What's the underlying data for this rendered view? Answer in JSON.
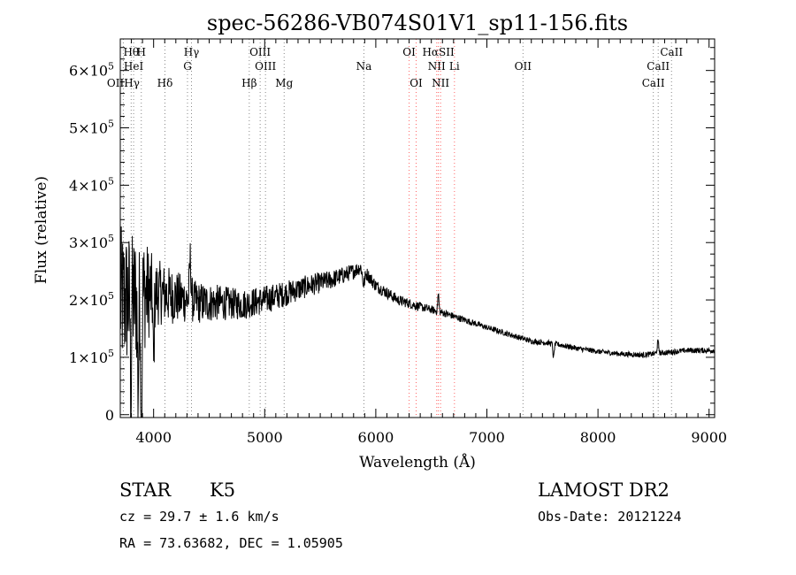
{
  "chart_data": {
    "type": "line",
    "title": "spec-56286-VB074S01V1_sp11-156.fits",
    "xlabel": "Wavelength (Å)",
    "ylabel": "Flux (relative)",
    "xlim": [
      3700,
      9050
    ],
    "ylim": [
      -5000,
      655000
    ],
    "x_ticks": [
      4000,
      5000,
      6000,
      7000,
      8000,
      9000
    ],
    "y_ticks": [
      {
        "value": 0,
        "mant": "0",
        "exp": ""
      },
      {
        "value": 100000,
        "mant": "1×10",
        "exp": "5"
      },
      {
        "value": 200000,
        "mant": "2×10",
        "exp": "5"
      },
      {
        "value": 300000,
        "mant": "3×10",
        "exp": "5"
      },
      {
        "value": 400000,
        "mant": "4×10",
        "exp": "5"
      },
      {
        "value": 500000,
        "mant": "5×10",
        "exp": "5"
      },
      {
        "value": 600000,
        "mant": "6×10",
        "exp": "5"
      }
    ],
    "series": [
      {
        "name": "flux",
        "continuum": [
          [
            3700,
            200000
          ],
          [
            3800,
            200000
          ],
          [
            3900,
            210000
          ],
          [
            4000,
            215000
          ],
          [
            4200,
            205000
          ],
          [
            4400,
            195000
          ],
          [
            4600,
            195000
          ],
          [
            4800,
            192000
          ],
          [
            5000,
            200000
          ],
          [
            5200,
            212000
          ],
          [
            5400,
            225000
          ],
          [
            5600,
            235000
          ],
          [
            5800,
            250000
          ],
          [
            5870,
            258000
          ],
          [
            6000,
            225000
          ],
          [
            6200,
            200000
          ],
          [
            6400,
            188000
          ],
          [
            6600,
            178000
          ],
          [
            6800,
            165000
          ],
          [
            7000,
            152000
          ],
          [
            7200,
            140000
          ],
          [
            7400,
            128000
          ],
          [
            7600,
            124000
          ],
          [
            7800,
            116000
          ],
          [
            8000,
            110000
          ],
          [
            8200,
            106000
          ],
          [
            8400,
            104000
          ],
          [
            8600,
            108000
          ],
          [
            8800,
            112000
          ],
          [
            9050,
            112000
          ]
        ],
        "noise": [
          [
            3700,
            130000
          ],
          [
            3900,
            110000
          ],
          [
            4000,
            60000
          ],
          [
            4300,
            40000
          ],
          [
            4700,
            28000
          ],
          [
            5000,
            25000
          ],
          [
            5500,
            18000
          ],
          [
            5900,
            12000
          ],
          [
            6500,
            7000
          ],
          [
            7000,
            5000
          ],
          [
            8000,
            4500
          ],
          [
            9050,
            5000
          ]
        ],
        "features": [
          {
            "x": 3890,
            "width": 6,
            "depth": 450000
          },
          {
            "x": 3860,
            "width": 8,
            "depth": 160000
          },
          {
            "x": 3795,
            "width": 6,
            "depth": 220000
          },
          {
            "x": 4000,
            "width": 8,
            "depth": 130000
          },
          {
            "x": 4330,
            "width": 10,
            "depth": -70000
          },
          {
            "x": 5890,
            "width": 15,
            "depth": 25000
          },
          {
            "x": 6563,
            "width": 8,
            "depth": -30000
          },
          {
            "x": 7600,
            "width": 8,
            "depth": 25000
          },
          {
            "x": 8540,
            "width": 10,
            "depth": -20000
          }
        ]
      }
    ],
    "lines": [
      {
        "label": "Hθ",
        "x": 3798,
        "row": 1,
        "color": "#888888"
      },
      {
        "label": "H",
        "x": 3889,
        "row": 1,
        "color": "#888888"
      },
      {
        "label": "Hγ",
        "x": 4341,
        "row": 1,
        "color": "#888888"
      },
      {
        "label": "OIII",
        "x": 4959,
        "row": 1,
        "color": "#888888"
      },
      {
        "label": "OI",
        "x": 6300,
        "row": 1,
        "color": "#ff6666"
      },
      {
        "label": "HαSII",
        "x": 6563,
        "row": 1,
        "color": "#ff6666"
      },
      {
        "label": "CaII",
        "x": 8662,
        "row": 1,
        "color": "#888888"
      },
      {
        "label": "HeI",
        "x": 3820,
        "row": 2,
        "color": "#888888"
      },
      {
        "label": "G",
        "x": 4305,
        "row": 2,
        "color": "#888888"
      },
      {
        "label": "OIII",
        "x": 5007,
        "row": 2,
        "color": "#888888"
      },
      {
        "label": "Na",
        "x": 5893,
        "row": 2,
        "color": "#888888"
      },
      {
        "label": "NII",
        "x": 6548,
        "row": 2,
        "color": "#ff6666"
      },
      {
        "label": "Li",
        "x": 6708,
        "row": 2,
        "color": "#ff6666"
      },
      {
        "label": "OII",
        "x": 7325,
        "row": 2,
        "color": "#888888"
      },
      {
        "label": "CaII",
        "x": 8542,
        "row": 2,
        "color": "#888888"
      },
      {
        "label": "OIIHγ",
        "x": 3727,
        "row": 3,
        "color": "#888888"
      },
      {
        "label": "Hδ",
        "x": 4102,
        "row": 3,
        "color": "#888888"
      },
      {
        "label": "Hβ",
        "x": 4861,
        "row": 3,
        "color": "#888888"
      },
      {
        "label": "Mg",
        "x": 5175,
        "row": 3,
        "color": "#888888"
      },
      {
        "label": "OI",
        "x": 6363,
        "row": 3,
        "color": "#ff6666"
      },
      {
        "label": "NII",
        "x": 6583,
        "row": 3,
        "color": "#ff6666"
      },
      {
        "label": "CaII",
        "x": 8498,
        "row": 3,
        "color": "#888888"
      }
    ]
  },
  "info": {
    "class_label": "STAR",
    "subclass": "K5",
    "survey": "LAMOST DR2",
    "redshift": "cz = 29.7 ± 1.6 km/s",
    "obs_date": "Obs-Date: 20121224",
    "coords": "RA =  73.63682, DEC =   1.05905"
  }
}
